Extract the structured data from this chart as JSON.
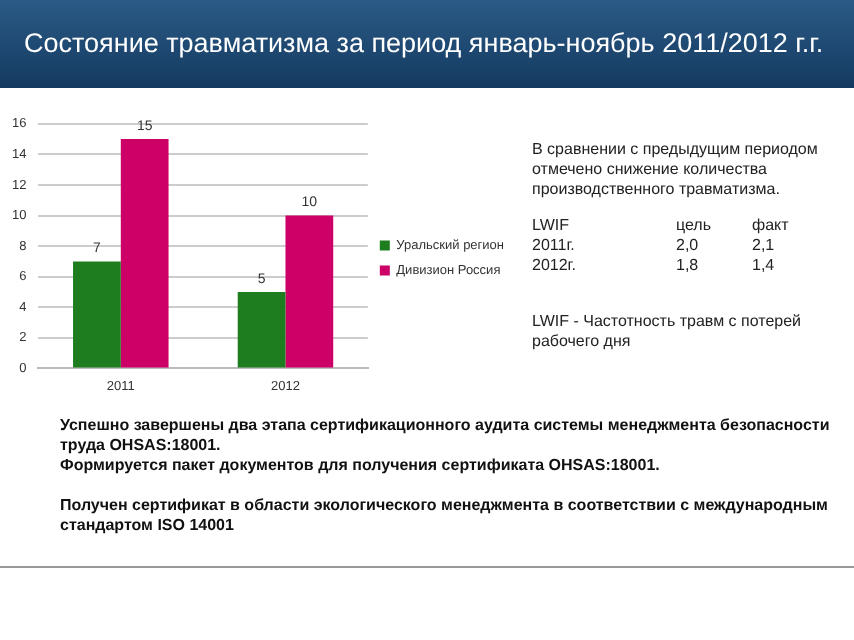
{
  "chart_data": {
    "type": "bar",
    "title": "Состояние травматизма за период январь-ноябрь 2011/2012 г.г.",
    "categories": [
      "2011",
      "2012"
    ],
    "series": [
      {
        "name": "Уральский регион",
        "color": "#1e7d1e",
        "values": [
          7,
          5
        ]
      },
      {
        "name": "Дивизион Россия",
        "color": "#cc0066",
        "values": [
          15,
          10
        ]
      }
    ],
    "ylim": [
      0,
      16
    ],
    "yticks": [
      0,
      2,
      4,
      6,
      8,
      10,
      12,
      14,
      16
    ],
    "grid": "y",
    "legend": "right",
    "data_labels": true,
    "annotations": [
      "В сравнении с предыдущим периодом отмечено снижение количества производственного травматизма.",
      "LWIF\tцель\tфакт",
      "2011г.\t2,0\t2,1",
      "2012г.\t1,8\t1,4",
      "LWIF -  Частотность травм с потерей рабочего дня",
      "Успешно завершены два этапа сертификационного аудита системы менеджмента безопасности труда OHSAS:18001.",
      "Формируется пакет документов для получения сертификата OHSAS:18001.",
      "Получен сертификат в области экологического менеджмента в соответствии с международным стандартом ISO 14001"
    ]
  }
}
